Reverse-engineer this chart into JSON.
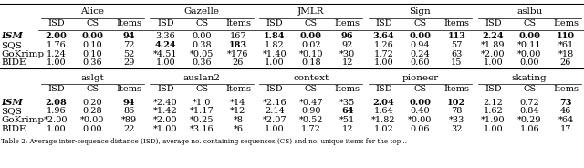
{
  "caption": "Table 2: Average inter-sequence distance (ISD), average no. containing sequences (CS) and no. unique items for the top...",
  "top_headers": [
    "Alice",
    "Gazelle",
    "JMLR",
    "Sign",
    "aslbu"
  ],
  "bottom_headers": [
    "aslgt",
    "auslan2",
    "context",
    "pioneer",
    "skating"
  ],
  "sub_headers": [
    "ISD",
    "CS",
    "Items"
  ],
  "row_labels": [
    "ISM",
    "SQS",
    "GoKrimp",
    "BIDE"
  ],
  "top_data": [
    [
      [
        "**2.00**",
        "**0.00**",
        "**94**"
      ],
      [
        "3.36",
        "0.00",
        "167"
      ],
      [
        "**1.84**",
        "**0.00**",
        "**96**"
      ],
      [
        "**3.64**",
        "**0.00**",
        "**113**"
      ],
      [
        "**2.24**",
        "**0.00**",
        "**110**"
      ]
    ],
    [
      [
        "1.76",
        "0.10",
        "72"
      ],
      [
        "**4.24**",
        "0.38",
        "**183**"
      ],
      [
        "1.82",
        "0.02",
        "92"
      ],
      [
        "1.26",
        "0.94",
        "57"
      ],
      [
        "*1.89",
        "*0.11",
        "*61"
      ]
    ],
    [
      [
        "1.24",
        "0.10",
        "52"
      ],
      [
        "*4.51",
        "*0.05",
        "*176"
      ],
      [
        "*1.40",
        "*0.10",
        "*30"
      ],
      [
        "1.72",
        "0.24",
        "63"
      ],
      [
        "*2.00",
        "*0.00",
        "*18"
      ]
    ],
    [
      [
        "1.00",
        "0.36",
        "29"
      ],
      [
        "1.00",
        "0.36",
        "26"
      ],
      [
        "1.00",
        "0.18",
        "12"
      ],
      [
        "1.00",
        "0.60",
        "15"
      ],
      [
        "1.00",
        "0.00",
        "26"
      ]
    ]
  ],
  "bottom_data": [
    [
      [
        "**2.08**",
        "0.20",
        "**94**"
      ],
      [
        "*2.40",
        "*1.0",
        "*14"
      ],
      [
        "*2.16",
        "*0.47",
        "*35"
      ],
      [
        "**2.04**",
        "**0.00**",
        "**102**"
      ],
      [
        "2.12",
        "0.72",
        "**73**"
      ]
    ],
    [
      [
        "1.96",
        "0.28",
        "86"
      ],
      [
        "*1.42",
        "*1.17",
        "*12"
      ],
      [
        "2.14",
        "0.90",
        "**64**"
      ],
      [
        "1.64",
        "0.40",
        "78"
      ],
      [
        "1.62",
        "0.84",
        "46"
      ]
    ],
    [
      [
        "*2.00",
        "*0.00",
        "*89"
      ],
      [
        "*2.00",
        "*0.25",
        "*8"
      ],
      [
        "*2.07",
        "*0.52",
        "*51"
      ],
      [
        "*1.82",
        "*0.00",
        "*33"
      ],
      [
        "*1.90",
        "*0.29",
        "*64"
      ]
    ],
    [
      [
        "1.00",
        "0.00",
        "22"
      ],
      [
        "*1.00",
        "*3.16",
        "*6"
      ],
      [
        "1.00",
        "1.72",
        "12"
      ],
      [
        "1.02",
        "0.06",
        "32"
      ],
      [
        "1.00",
        "1.06",
        "17"
      ]
    ]
  ],
  "bold_rows": [
    0
  ],
  "background_color": "#ffffff",
  "font_size": 7.5
}
